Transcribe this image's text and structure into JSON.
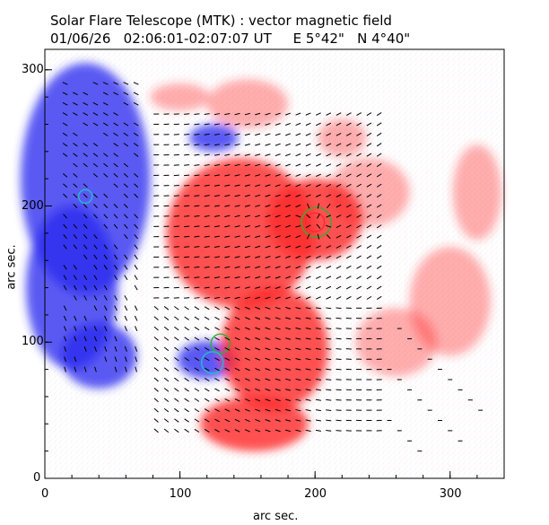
{
  "figure": {
    "title": "Solar Flare Telescope (MTK) : vector magnetic field",
    "subtitle": "01/06/26   02:06:01-02:07:07 UT     E 5°42\"   N 4°40\"",
    "x_axis_label": "arc sec.",
    "y_axis_label": "arc sec.",
    "x_ticks": [
      "0",
      "100",
      "200",
      "300"
    ],
    "y_ticks": [
      "0",
      "100",
      "200",
      "300"
    ],
    "x_range": [
      0,
      340
    ],
    "y_range": [
      0,
      315
    ],
    "colors": {
      "positive_polarity": "#ff2a2a",
      "negative_polarity": "#2c2cf0",
      "contour_green": "#2db12d",
      "contour_cyan": "#22bccc",
      "vectors": "#000000",
      "background": "#ffffff"
    }
  },
  "regions": {
    "negative": [
      {
        "cx": 30,
        "cy": 220,
        "rx": 48,
        "ry": 85
      },
      {
        "cx": 20,
        "cy": 140,
        "rx": 34,
        "ry": 60
      },
      {
        "cx": 40,
        "cy": 90,
        "rx": 28,
        "ry": 24
      },
      {
        "cx": 120,
        "cy": 87,
        "rx": 22,
        "ry": 14
      },
      {
        "cx": 125,
        "cy": 250,
        "rx": 18,
        "ry": 10
      }
    ],
    "positive": [
      {
        "cx": 145,
        "cy": 180,
        "rx": 55,
        "ry": 55
      },
      {
        "cx": 200,
        "cy": 190,
        "rx": 35,
        "ry": 30
      },
      {
        "cx": 170,
        "cy": 95,
        "rx": 40,
        "ry": 45
      },
      {
        "cx": 155,
        "cy": 40,
        "rx": 40,
        "ry": 20
      },
      {
        "cx": 240,
        "cy": 210,
        "rx": 30,
        "ry": 25
      },
      {
        "cx": 150,
        "cy": 275,
        "rx": 30,
        "ry": 18
      },
      {
        "cx": 100,
        "cy": 280,
        "rx": 22,
        "ry": 10
      },
      {
        "cx": 300,
        "cy": 130,
        "rx": 30,
        "ry": 40
      },
      {
        "cx": 320,
        "cy": 210,
        "rx": 18,
        "ry": 35
      },
      {
        "cx": 260,
        "cy": 100,
        "rx": 30,
        "ry": 25
      },
      {
        "cx": 220,
        "cy": 250,
        "rx": 18,
        "ry": 14
      }
    ],
    "contours": [
      {
        "cx": 201,
        "cy": 188,
        "r": 11,
        "color": "green"
      },
      {
        "cx": 200,
        "cy": 188,
        "r": 7,
        "color": "red"
      },
      {
        "cx": 130,
        "cy": 99,
        "r": 7,
        "color": "green"
      },
      {
        "cx": 124,
        "cy": 85,
        "r": 8,
        "color": "cyan"
      },
      {
        "cx": 30,
        "cy": 207,
        "r": 5,
        "color": "cyan"
      }
    ]
  }
}
